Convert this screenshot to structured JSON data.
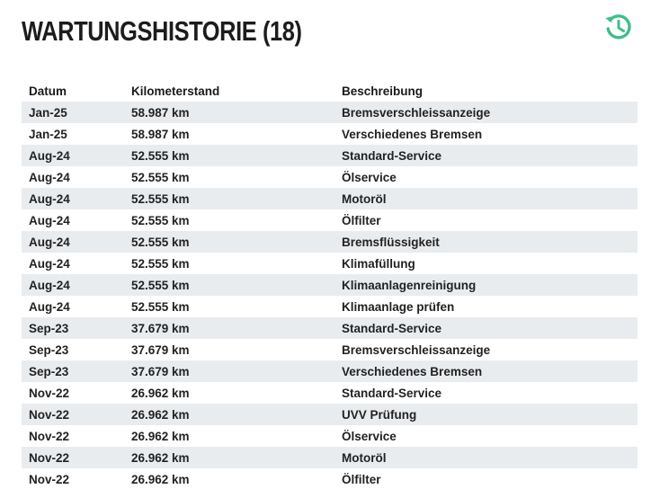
{
  "title": "WARTUNGSHISTORIE (18)",
  "icon": "history-icon",
  "accent_color": "#3dbf8a",
  "table": {
    "headers": {
      "date": "Datum",
      "km": "Kilometerstand",
      "desc": "Beschreibung"
    },
    "rows": [
      {
        "date": "Jan-25",
        "km": "58.987 km",
        "desc": "Bremsverschleissanzeige"
      },
      {
        "date": "Jan-25",
        "km": "58.987 km",
        "desc": "Verschiedenes Bremsen"
      },
      {
        "date": "Aug-24",
        "km": "52.555 km",
        "desc": "Standard-Service"
      },
      {
        "date": "Aug-24",
        "km": "52.555 km",
        "desc": "Ölservice"
      },
      {
        "date": "Aug-24",
        "km": "52.555 km",
        "desc": "Motoröl"
      },
      {
        "date": "Aug-24",
        "km": "52.555 km",
        "desc": "Ölfilter"
      },
      {
        "date": "Aug-24",
        "km": "52.555 km",
        "desc": "Bremsflüssigkeit"
      },
      {
        "date": "Aug-24",
        "km": "52.555 km",
        "desc": "Klimafüllung"
      },
      {
        "date": "Aug-24",
        "km": "52.555 km",
        "desc": "Klimaanlagenreinigung"
      },
      {
        "date": "Aug-24",
        "km": "52.555 km",
        "desc": "Klimaanlage prüfen"
      },
      {
        "date": "Sep-23",
        "km": "37.679 km",
        "desc": "Standard-Service"
      },
      {
        "date": "Sep-23",
        "km": "37.679 km",
        "desc": "Bremsverschleissanzeige"
      },
      {
        "date": "Sep-23",
        "km": "37.679 km",
        "desc": "Verschiedenes Bremsen"
      },
      {
        "date": "Nov-22",
        "km": "26.962 km",
        "desc": "Standard-Service"
      },
      {
        "date": "Nov-22",
        "km": "26.962 km",
        "desc": "UVV Prüfung"
      },
      {
        "date": "Nov-22",
        "km": "26.962 km",
        "desc": "Ölservice"
      },
      {
        "date": "Nov-22",
        "km": "26.962 km",
        "desc": "Motoröl"
      },
      {
        "date": "Nov-22",
        "km": "26.962 km",
        "desc": "Ölfilter"
      }
    ]
  }
}
